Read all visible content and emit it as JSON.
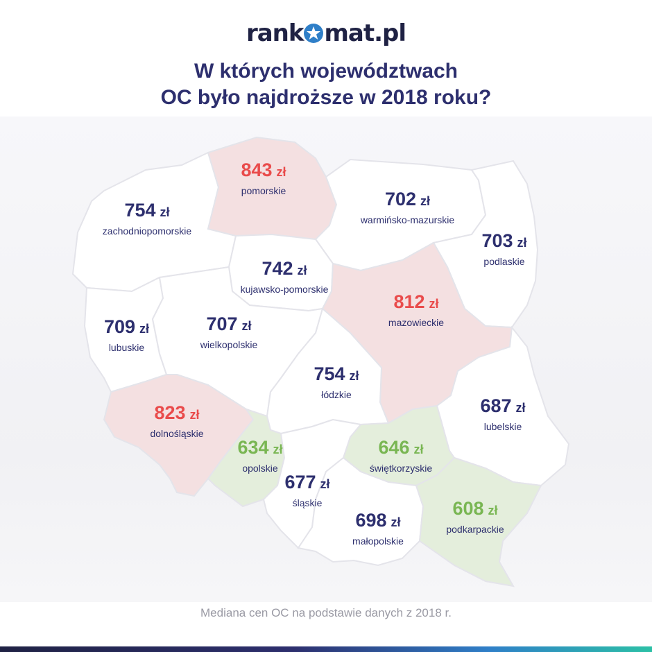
{
  "logo": {
    "before": "rank",
    "after": "mat.pl",
    "icon": "star-icon"
  },
  "title": {
    "line1": "W których województwach",
    "line2": "OC było najdroższe w 2018 roku?"
  },
  "currency": "zł",
  "colors": {
    "high": "#e94b4b",
    "low": "#79b653",
    "mid": "#2d2f6e",
    "high_fill": "#f4e0e1",
    "low_fill": "#e4eedc",
    "mid_fill": "#ffffff"
  },
  "regions": [
    {
      "id": "pomorskie",
      "name": "pomorskie",
      "value": "843",
      "category": "high"
    },
    {
      "id": "zachodniopomorskie",
      "name": "zachodniopomorskie",
      "value": "754",
      "category": "mid"
    },
    {
      "id": "warminsko-mazurskie",
      "name": "warmińsko-mazurskie",
      "value": "702",
      "category": "mid"
    },
    {
      "id": "podlaskie",
      "name": "podlaskie",
      "value": "703",
      "category": "mid"
    },
    {
      "id": "kujawsko-pomorskie",
      "name": "kujawsko-pomorskie",
      "value": "742",
      "category": "mid"
    },
    {
      "id": "mazowieckie",
      "name": "mazowieckie",
      "value": "812",
      "category": "high"
    },
    {
      "id": "lubuskie",
      "name": "lubuskie",
      "value": "709",
      "category": "mid"
    },
    {
      "id": "wielkopolskie",
      "name": "wielkopolskie",
      "value": "707",
      "category": "mid"
    },
    {
      "id": "lodzkie",
      "name": "łódzkie",
      "value": "754",
      "category": "mid"
    },
    {
      "id": "lubelskie",
      "name": "lubelskie",
      "value": "687",
      "category": "mid"
    },
    {
      "id": "dolnoslaskie",
      "name": "dolnośląskie",
      "value": "823",
      "category": "high"
    },
    {
      "id": "opolskie",
      "name": "opolskie",
      "value": "634",
      "category": "low"
    },
    {
      "id": "swietokrzyskie",
      "name": "świętkorzyskie",
      "value": "646",
      "category": "low"
    },
    {
      "id": "slaskie",
      "name": "śląskie",
      "value": "677",
      "category": "mid"
    },
    {
      "id": "malopolskie",
      "name": "małopolskie",
      "value": "698",
      "category": "mid"
    },
    {
      "id": "podkarpackie",
      "name": "podkarpackie",
      "value": "608",
      "category": "low"
    }
  ],
  "caption": "Mediana cen OC na podstawie danych z 2018 r."
}
